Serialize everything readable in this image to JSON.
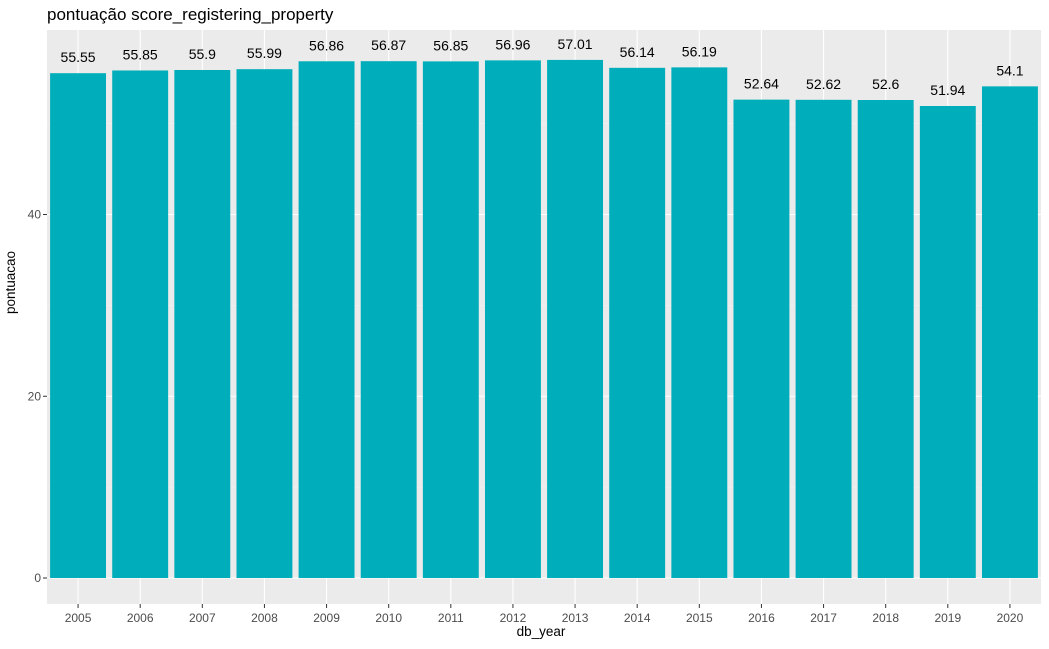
{
  "chart_data": {
    "type": "bar",
    "title": "pontuação score_registering_property",
    "xlabel": "db_year",
    "ylabel": "pontuacao",
    "categories": [
      "2005",
      "2006",
      "2007",
      "2008",
      "2009",
      "2010",
      "2011",
      "2012",
      "2013",
      "2014",
      "2015",
      "2016",
      "2017",
      "2018",
      "2019",
      "2020"
    ],
    "values": [
      55.55,
      55.85,
      55.9,
      55.99,
      56.86,
      56.87,
      56.85,
      56.96,
      57.01,
      56.14,
      56.19,
      52.64,
      52.62,
      52.6,
      51.94,
      54.1
    ],
    "data_labels": [
      "55.55",
      "55.85",
      "55.9",
      "55.99",
      "56.86",
      "56.87",
      "56.85",
      "56.96",
      "57.01",
      "56.14",
      "56.19",
      "52.64",
      "52.62",
      "52.6",
      "51.94",
      "54.1"
    ],
    "y_ticks": [
      0,
      20,
      40
    ],
    "ylim": [
      -2.85,
      59.86
    ],
    "grid": true,
    "legend": "none",
    "colors": {
      "bar": "#00ADBA",
      "panel": "#EBEBEB",
      "grid_major": "#FFFFFF",
      "grid_minor": "#F5F5F5",
      "tick_text": "#4D4D4D"
    }
  }
}
